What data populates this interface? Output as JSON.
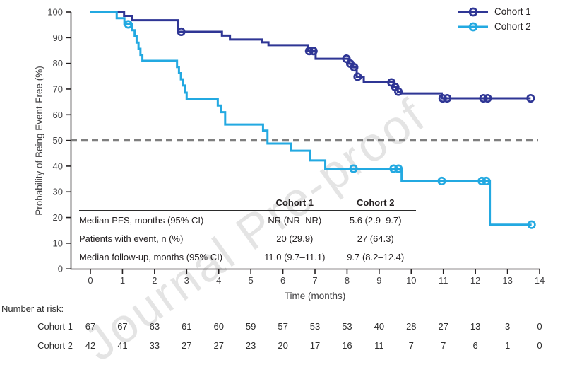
{
  "watermark": {
    "text": "Journal Pre-proof"
  },
  "chart_data": {
    "type": "line",
    "subtype": "kaplan-meier-step",
    "xlabel": "Time (months)",
    "ylabel": "Probability of Being Event-Free (%)",
    "xlim": [
      0,
      14
    ],
    "ylim": [
      0,
      100
    ],
    "xticks": [
      0,
      1,
      2,
      3,
      4,
      5,
      6,
      7,
      8,
      9,
      10,
      11,
      12,
      13,
      14
    ],
    "yticks": [
      0,
      10,
      20,
      30,
      40,
      50,
      60,
      70,
      80,
      90,
      100
    ],
    "grid": false,
    "legend_position": "top-right",
    "reference_line": {
      "y": 50,
      "style": "dashed",
      "color": "#7f7f7f"
    },
    "series": [
      {
        "name": "Cohort 1",
        "color": "#2f3695",
        "end": 13.72,
        "steps": [
          [
            0,
            100
          ],
          [
            1.05,
            98.5
          ],
          [
            1.3,
            96.8
          ],
          [
            2.72,
            92.3
          ],
          [
            4.1,
            90.8
          ],
          [
            4.35,
            89.3
          ],
          [
            5.35,
            88.2
          ],
          [
            5.55,
            87.1
          ],
          [
            6.78,
            84.8
          ],
          [
            7.02,
            81.8
          ],
          [
            8.05,
            79.9
          ],
          [
            8.18,
            78.5
          ],
          [
            8.3,
            74.8
          ],
          [
            8.52,
            72.6
          ],
          [
            9.45,
            70.8
          ],
          [
            9.58,
            69.0
          ],
          [
            9.68,
            68.3
          ],
          [
            10.95,
            66.4
          ]
        ],
        "censors": [
          [
            2.83,
            92.3
          ],
          [
            6.82,
            84.8
          ],
          [
            6.95,
            84.8
          ],
          [
            7.98,
            81.8
          ],
          [
            8.1,
            79.9
          ],
          [
            8.22,
            78.5
          ],
          [
            8.33,
            74.8
          ],
          [
            9.38,
            72.6
          ],
          [
            9.5,
            70.8
          ],
          [
            9.6,
            69.0
          ],
          [
            10.98,
            66.4
          ],
          [
            11.12,
            66.4
          ],
          [
            12.25,
            66.4
          ],
          [
            12.38,
            66.4
          ],
          [
            13.72,
            66.4
          ]
        ]
      },
      {
        "name": "Cohort 2",
        "color": "#23a9e1",
        "end": 13.75,
        "steps": [
          [
            0,
            100
          ],
          [
            0.82,
            97.6
          ],
          [
            1.06,
            95.2
          ],
          [
            1.3,
            92.9
          ],
          [
            1.38,
            90.5
          ],
          [
            1.44,
            88.1
          ],
          [
            1.5,
            85.7
          ],
          [
            1.56,
            83.3
          ],
          [
            1.62,
            81.0
          ],
          [
            2.7,
            78.6
          ],
          [
            2.76,
            76.2
          ],
          [
            2.82,
            73.8
          ],
          [
            2.88,
            71.4
          ],
          [
            2.94,
            68.6
          ],
          [
            3.0,
            66.2
          ],
          [
            3.97,
            63.6
          ],
          [
            4.08,
            61.0
          ],
          [
            4.2,
            56.2
          ],
          [
            5.38,
            53.8
          ],
          [
            5.52,
            48.8
          ],
          [
            6.25,
            46.0
          ],
          [
            6.85,
            42.2
          ],
          [
            7.32,
            39.0
          ],
          [
            9.7,
            34.2
          ],
          [
            12.45,
            17.2
          ]
        ],
        "censors": [
          [
            1.18,
            95.2
          ],
          [
            8.2,
            39.0
          ],
          [
            9.45,
            39.0
          ],
          [
            9.6,
            39.0
          ],
          [
            10.95,
            34.2
          ],
          [
            12.2,
            34.2
          ],
          [
            12.34,
            34.2
          ],
          [
            13.75,
            17.2
          ]
        ]
      }
    ]
  },
  "stats_table": {
    "headers": [
      "",
      "Cohort 1",
      "Cohort 2"
    ],
    "rows": [
      [
        "Median PFS, months (95% CI)",
        "NR (NR–NR)",
        "5.6 (2.9–9.7)"
      ],
      [
        "Patients with event, n (%)",
        "20 (29.9)",
        "27 (64.3)"
      ],
      [
        "Median follow-up, months (95% CI)",
        "11.0 (9.7–11.1)",
        "9.7 (8.2–12.4)"
      ]
    ]
  },
  "risk_table": {
    "label": "Number at risk:",
    "rows": [
      {
        "name": "Cohort 1",
        "values": [
          "67",
          "67",
          "63",
          "61",
          "60",
          "59",
          "57",
          "53",
          "53",
          "40",
          "28",
          "27",
          "13",
          "3",
          "0"
        ]
      },
      {
        "name": "Cohort 2",
        "values": [
          "42",
          "41",
          "33",
          "27",
          "27",
          "23",
          "20",
          "17",
          "16",
          "11",
          "7",
          "7",
          "6",
          "1",
          "0"
        ]
      }
    ]
  }
}
